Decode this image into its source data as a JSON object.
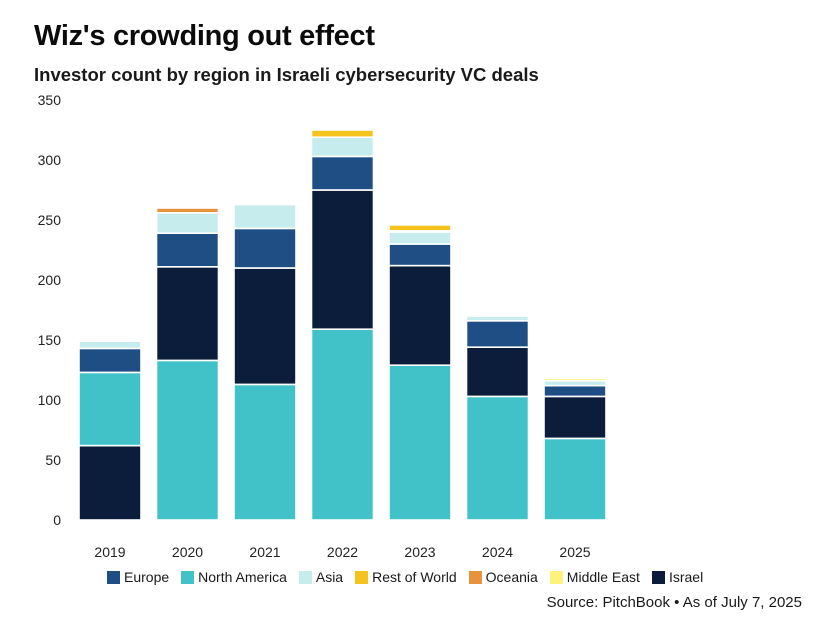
{
  "header": {
    "title": "Wiz's crowding out effect",
    "subtitle": "Investor count by region in Israeli cybersecurity VC deals"
  },
  "source": "Source: PitchBook • As of July 7, 2025",
  "chart_data": {
    "type": "bar",
    "stacked": true,
    "title": "Wiz's crowding out effect",
    "subtitle": "Investor count by region in Israeli cybersecurity VC deals",
    "xlabel": "",
    "ylabel": "",
    "ylim": [
      0,
      350
    ],
    "yticks": [
      0,
      50,
      100,
      150,
      200,
      250,
      300,
      350
    ],
    "grid": false,
    "legend_position": "bottom",
    "categories": [
      "2019",
      "2020",
      "2021",
      "2022",
      "2023",
      "2024",
      "2025"
    ],
    "series": [
      {
        "name": "Israel",
        "color": "#0b1d3a",
        "values": [
          62,
          0,
          0,
          0,
          0,
          0,
          0
        ]
      },
      {
        "name": "North America",
        "color": "#41c1c8",
        "values": [
          61,
          133,
          113,
          159,
          129,
          103,
          68
        ]
      },
      {
        "name": "Israel",
        "color": "#0b1d3a",
        "values": [
          0,
          78,
          97,
          116,
          83,
          41,
          35
        ]
      },
      {
        "name": "Europe",
        "color": "#1f4e85",
        "values": [
          20,
          28,
          33,
          28,
          18,
          22,
          9
        ]
      },
      {
        "name": "Asia",
        "color": "#c6ecee",
        "values": [
          6,
          17,
          20,
          16,
          10,
          4,
          4
        ]
      },
      {
        "name": "Middle East",
        "color": "#fff27a",
        "values": [
          0,
          0,
          1,
          0,
          1,
          1,
          2
        ]
      },
      {
        "name": "Rest of World",
        "color": "#f6c21d",
        "values": [
          0,
          0,
          0,
          6,
          5,
          0,
          0
        ]
      },
      {
        "name": "Oceania",
        "color": "#e7923c",
        "values": [
          1,
          4,
          1,
          0,
          1,
          1,
          0
        ]
      }
    ],
    "legend": [
      {
        "name": "Europe",
        "color": "#1f4e85"
      },
      {
        "name": "North America",
        "color": "#41c1c8"
      },
      {
        "name": "Asia",
        "color": "#c6ecee"
      },
      {
        "name": "Rest of World",
        "color": "#f6c21d"
      },
      {
        "name": "Oceania",
        "color": "#e7923c"
      },
      {
        "name": "Middle East",
        "color": "#fff27a"
      },
      {
        "name": "Israel",
        "color": "#0b1d3a"
      }
    ]
  }
}
